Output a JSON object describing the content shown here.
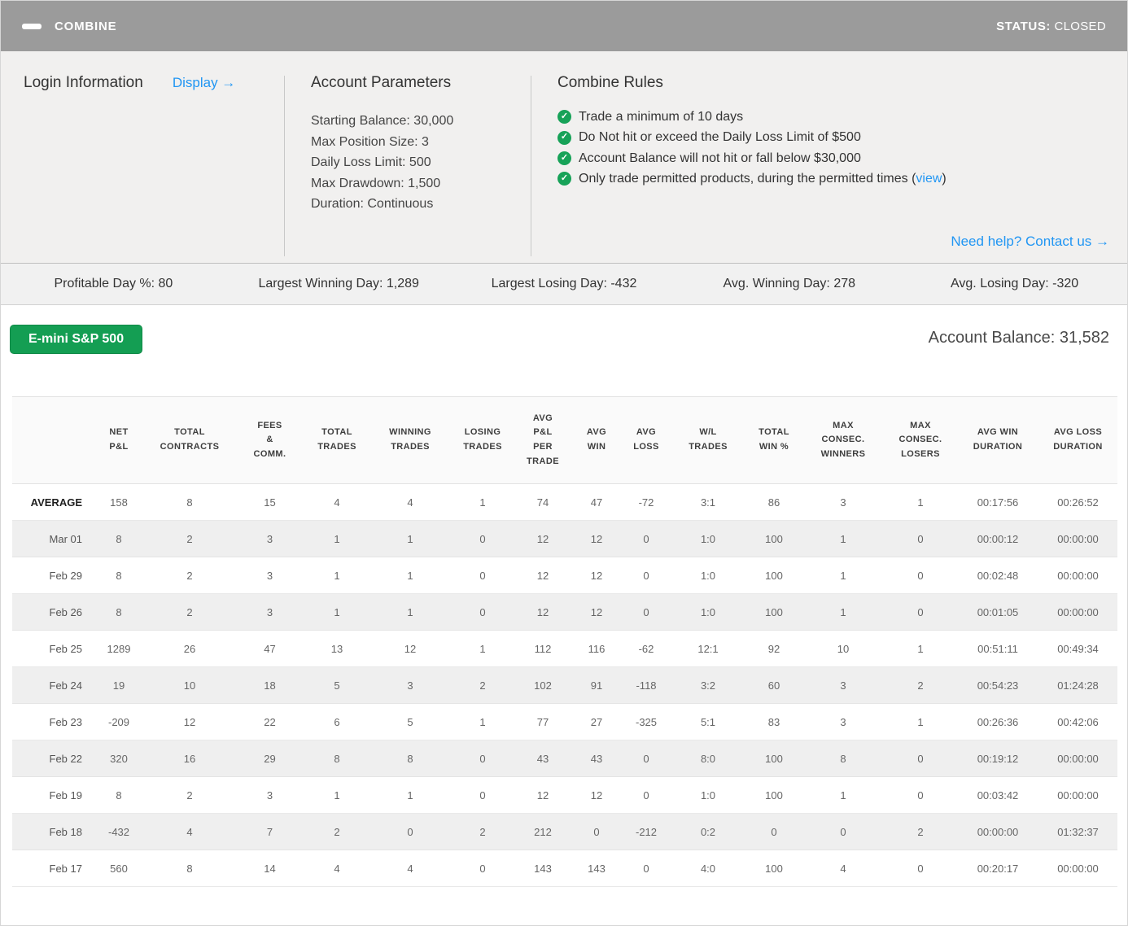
{
  "window": {
    "title": "COMBINE",
    "status_label": "STATUS:",
    "status_value": "CLOSED"
  },
  "panels": {
    "login": {
      "title": "Login Information",
      "display_link": "Display →"
    },
    "account_parameters": {
      "title": "Account Parameters",
      "items": [
        "Starting Balance: 30,000",
        "Max Position Size: 3",
        "Daily Loss Limit: 500",
        "Max Drawdown: 1,500",
        "Duration: Continuous"
      ]
    },
    "combine_rules": {
      "title": "Combine Rules",
      "rules": [
        "Trade a minimum of 10 days",
        "Do Not hit or exceed the Daily Loss Limit of $500",
        "Account Balance will not hit or fall below $30,000"
      ],
      "rule_with_link": {
        "text_before": "Only trade permitted products, during the permitted times (",
        "link": "view",
        "text_after": ")"
      }
    },
    "help_link": "Need help? Contact us →"
  },
  "stats": [
    "Profitable Day %: 80",
    "Largest Winning Day: 1,289",
    "Largest Losing Day: -432",
    "Avg. Winning Day: 278",
    "Avg. Losing Day: -320"
  ],
  "toolbar": {
    "product_button": "E-mini S&P 500",
    "account_balance": "Account Balance: 31,582"
  },
  "table": {
    "columns": [
      "",
      "NET\nP&L",
      "TOTAL\nCONTRACTS",
      "FEES\n&\nCOMM.",
      "TOTAL\nTRADES",
      "WINNING\nTRADES",
      "LOSING\nTRADES",
      "AVG\nP&L\nPER\nTRADE",
      "AVG\nWIN",
      "AVG\nLOSS",
      "W/L\nTRADES",
      "TOTAL\nWIN %",
      "MAX\nCONSEC.\nWINNERS",
      "MAX\nCONSEC.\nLOSERS",
      "AVG WIN\nDURATION",
      "AVG LOSS\nDURATION"
    ],
    "rows": [
      {
        "label": "AVERAGE",
        "bold": true,
        "values": [
          "158",
          "8",
          "15",
          "4",
          "4",
          "1",
          "74",
          "47",
          "-72",
          "3:1",
          "86",
          "3",
          "1",
          "00:17:56",
          "00:26:52"
        ]
      },
      {
        "label": "Mar 01",
        "values": [
          "8",
          "2",
          "3",
          "1",
          "1",
          "0",
          "12",
          "12",
          "0",
          "1:0",
          "100",
          "1",
          "0",
          "00:00:12",
          "00:00:00"
        ]
      },
      {
        "label": "Feb 29",
        "values": [
          "8",
          "2",
          "3",
          "1",
          "1",
          "0",
          "12",
          "12",
          "0",
          "1:0",
          "100",
          "1",
          "0",
          "00:02:48",
          "00:00:00"
        ]
      },
      {
        "label": "Feb 26",
        "values": [
          "8",
          "2",
          "3",
          "1",
          "1",
          "0",
          "12",
          "12",
          "0",
          "1:0",
          "100",
          "1",
          "0",
          "00:01:05",
          "00:00:00"
        ]
      },
      {
        "label": "Feb 25",
        "values": [
          "1289",
          "26",
          "47",
          "13",
          "12",
          "1",
          "112",
          "116",
          "-62",
          "12:1",
          "92",
          "10",
          "1",
          "00:51:11",
          "00:49:34"
        ]
      },
      {
        "label": "Feb 24",
        "values": [
          "19",
          "10",
          "18",
          "5",
          "3",
          "2",
          "102",
          "91",
          "-118",
          "3:2",
          "60",
          "3",
          "2",
          "00:54:23",
          "01:24:28"
        ]
      },
      {
        "label": "Feb 23",
        "values": [
          "-209",
          "12",
          "22",
          "6",
          "5",
          "1",
          "77",
          "27",
          "-325",
          "5:1",
          "83",
          "3",
          "1",
          "00:26:36",
          "00:42:06"
        ]
      },
      {
        "label": "Feb 22",
        "values": [
          "320",
          "16",
          "29",
          "8",
          "8",
          "0",
          "43",
          "43",
          "0",
          "8:0",
          "100",
          "8",
          "0",
          "00:19:12",
          "00:00:00"
        ]
      },
      {
        "label": "Feb 19",
        "values": [
          "8",
          "2",
          "3",
          "1",
          "1",
          "0",
          "12",
          "12",
          "0",
          "1:0",
          "100",
          "1",
          "0",
          "00:03:42",
          "00:00:00"
        ]
      },
      {
        "label": "Feb 18",
        "values": [
          "-432",
          "4",
          "7",
          "2",
          "0",
          "2",
          "212",
          "0",
          "-212",
          "0:2",
          "0",
          "0",
          "2",
          "00:00:00",
          "01:32:37"
        ]
      },
      {
        "label": "Feb 17",
        "values": [
          "560",
          "8",
          "14",
          "4",
          "4",
          "0",
          "143",
          "143",
          "0",
          "4:0",
          "100",
          "4",
          "0",
          "00:20:17",
          "00:00:00"
        ]
      }
    ]
  },
  "colors": {
    "accent_blue": "#2196f3",
    "check_green": "#17a258",
    "button_green": "#149e53",
    "titlebar_gray": "#9b9b9b"
  }
}
